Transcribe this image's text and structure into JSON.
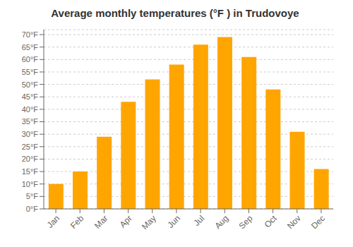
{
  "chart_data": {
    "type": "bar",
    "title": "Average monthly temperatures (°F ) in Trudovoye",
    "categories": [
      "Jan",
      "Feb",
      "Mar",
      "Apr",
      "May",
      "Jun",
      "Jul",
      "Aug",
      "Sep",
      "Oct",
      "Nov",
      "Dec"
    ],
    "values": [
      10,
      15,
      29,
      43,
      52,
      58,
      66,
      69,
      61,
      48,
      31,
      16
    ],
    "color": "#FFA500",
    "ylim": [
      0,
      72
    ],
    "yticks": [
      {
        "value": 0,
        "label": "0°F"
      },
      {
        "value": 5,
        "label": "5°F"
      },
      {
        "value": 10,
        "label": "10°F"
      },
      {
        "value": 15,
        "label": "15°F"
      },
      {
        "value": 20,
        "label": "20°F"
      },
      {
        "value": 25,
        "label": "25°F"
      },
      {
        "value": 30,
        "label": "30°F"
      },
      {
        "value": 35,
        "label": "35°F"
      },
      {
        "value": 40,
        "label": "40°F"
      },
      {
        "value": 45,
        "label": "45°F"
      },
      {
        "value": 50,
        "label": "50°F"
      },
      {
        "value": 55,
        "label": "55°F"
      },
      {
        "value": 60,
        "label": "60°F"
      },
      {
        "value": 65,
        "label": "65°F"
      },
      {
        "value": 70,
        "label": "70°F"
      }
    ],
    "grid": true
  }
}
